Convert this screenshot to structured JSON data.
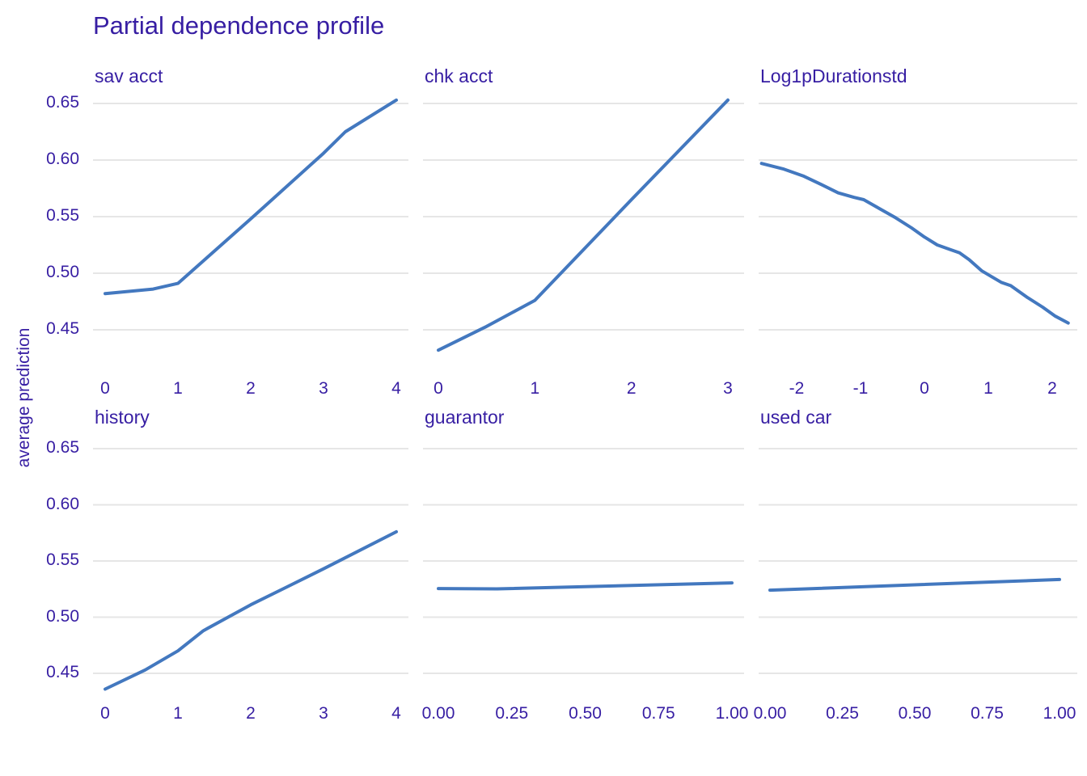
{
  "chart_data": {
    "type": "line",
    "title": "Partial dependence profile",
    "ylabel": "average prediction",
    "grid": "horizontal-only",
    "legend": "none",
    "line_color": "#4378bf",
    "label_color": "#371ea3",
    "ylim": [
      0.42,
      0.66
    ],
    "y_ticks": [
      {
        "value": 0.65,
        "label": "0.65"
      },
      {
        "value": 0.6,
        "label": "0.60"
      },
      {
        "value": 0.55,
        "label": "0.55"
      },
      {
        "value": 0.5,
        "label": "0.50"
      },
      {
        "value": 0.45,
        "label": "0.45"
      }
    ],
    "panels": [
      {
        "label": "sav acct",
        "x_ticks": [
          {
            "value": 0,
            "label": "0"
          },
          {
            "value": 1,
            "label": "1"
          },
          {
            "value": 2,
            "label": "2"
          },
          {
            "value": 3,
            "label": "3"
          },
          {
            "value": 4,
            "label": "4"
          }
        ],
        "points": [
          [
            0,
            0.482
          ],
          [
            0.66,
            0.486
          ],
          [
            1,
            0.491
          ],
          [
            2,
            0.548
          ],
          [
            3,
            0.606
          ],
          [
            3.3,
            0.625
          ],
          [
            4,
            0.653
          ]
        ]
      },
      {
        "label": "chk acct",
        "x_ticks": [
          {
            "value": 0,
            "label": "0"
          },
          {
            "value": 1,
            "label": "1"
          },
          {
            "value": 2,
            "label": "2"
          },
          {
            "value": 3,
            "label": "3"
          }
        ],
        "points": [
          [
            0,
            0.432
          ],
          [
            0.5,
            0.453
          ],
          [
            1,
            0.476
          ],
          [
            2,
            0.565
          ],
          [
            3,
            0.653
          ]
        ]
      },
      {
        "label": "Log1pDurationstd",
        "x_ticks": [
          {
            "value": -2,
            "label": "-2"
          },
          {
            "value": -1,
            "label": "-1"
          },
          {
            "value": 0,
            "label": "0"
          },
          {
            "value": 1,
            "label": "1"
          },
          {
            "value": 2,
            "label": "2"
          }
        ],
        "points": [
          [
            -2.55,
            0.597
          ],
          [
            -2.2,
            0.592
          ],
          [
            -1.9,
            0.586
          ],
          [
            -1.6,
            0.578
          ],
          [
            -1.35,
            0.571
          ],
          [
            -1.1,
            0.567
          ],
          [
            -0.95,
            0.565
          ],
          [
            -0.7,
            0.557
          ],
          [
            -0.45,
            0.549
          ],
          [
            -0.2,
            0.54
          ],
          [
            0,
            0.532
          ],
          [
            0.2,
            0.525
          ],
          [
            0.4,
            0.521
          ],
          [
            0.55,
            0.518
          ],
          [
            0.7,
            0.512
          ],
          [
            0.9,
            0.502
          ],
          [
            1.05,
            0.497
          ],
          [
            1.2,
            0.492
          ],
          [
            1.35,
            0.489
          ],
          [
            1.6,
            0.479
          ],
          [
            1.85,
            0.47
          ],
          [
            2.05,
            0.462
          ],
          [
            2.25,
            0.456
          ]
        ]
      },
      {
        "label": "history",
        "x_ticks": [
          {
            "value": 0,
            "label": "0"
          },
          {
            "value": 1,
            "label": "1"
          },
          {
            "value": 2,
            "label": "2"
          },
          {
            "value": 3,
            "label": "3"
          },
          {
            "value": 4,
            "label": "4"
          }
        ],
        "points": [
          [
            0,
            0.436
          ],
          [
            0.55,
            0.453
          ],
          [
            1,
            0.47
          ],
          [
            1.35,
            0.488
          ],
          [
            2,
            0.511
          ],
          [
            2.5,
            0.527
          ],
          [
            3,
            0.543
          ],
          [
            3.15,
            0.548
          ],
          [
            4,
            0.576
          ]
        ]
      },
      {
        "label": "guarantor",
        "x_ticks": [
          {
            "value": 0,
            "label": "0.00"
          },
          {
            "value": 0.25,
            "label": "0.25"
          },
          {
            "value": 0.5,
            "label": "0.50"
          },
          {
            "value": 0.75,
            "label": "0.75"
          },
          {
            "value": 1,
            "label": "1.00"
          }
        ],
        "points": [
          [
            0,
            0.5255
          ],
          [
            0.2,
            0.5252
          ],
          [
            1,
            0.5305
          ]
        ]
      },
      {
        "label": "used car",
        "x_ticks": [
          {
            "value": 0,
            "label": "0.00"
          },
          {
            "value": 0.25,
            "label": "0.25"
          },
          {
            "value": 0.5,
            "label": "0.50"
          },
          {
            "value": 0.75,
            "label": "0.75"
          },
          {
            "value": 1,
            "label": "1.00"
          }
        ],
        "points": [
          [
            0,
            0.524
          ],
          [
            1,
            0.5335
          ]
        ]
      }
    ]
  }
}
